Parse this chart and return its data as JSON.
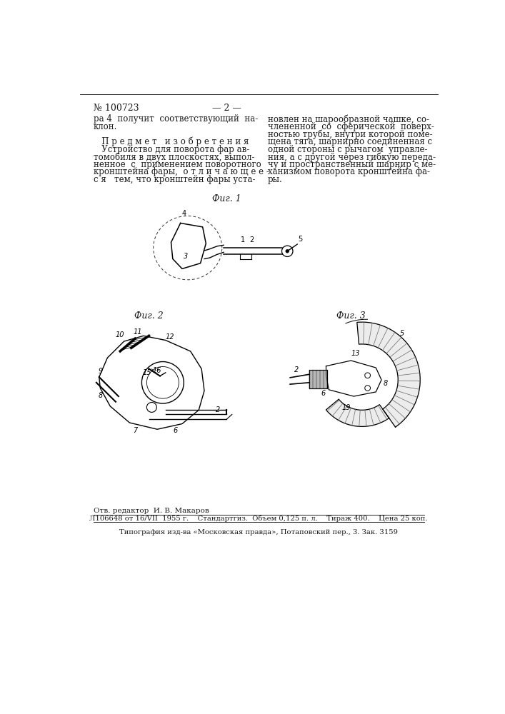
{
  "page_number": "№ 100723",
  "page_number2": "— 2 —",
  "bg_color": "#ffffff",
  "text_color": "#1a1a1a",
  "fig1_label": "Фиг. 1",
  "fig2_label": "Фиг. 2",
  "fig3_label": "Фиг. 3",
  "footer_editor": "Отв. редактор  И. В. Макаров",
  "footer_line1": "Л106648 от 16/VII  1955 г.    Стандартгиз.  Объем 0,125 п. л.    Тираж 400.    Цена 25 коп.",
  "footer_line2": "Типография изд-ва «Московская правда», Потаповский пер., 3. Зак. 3159"
}
